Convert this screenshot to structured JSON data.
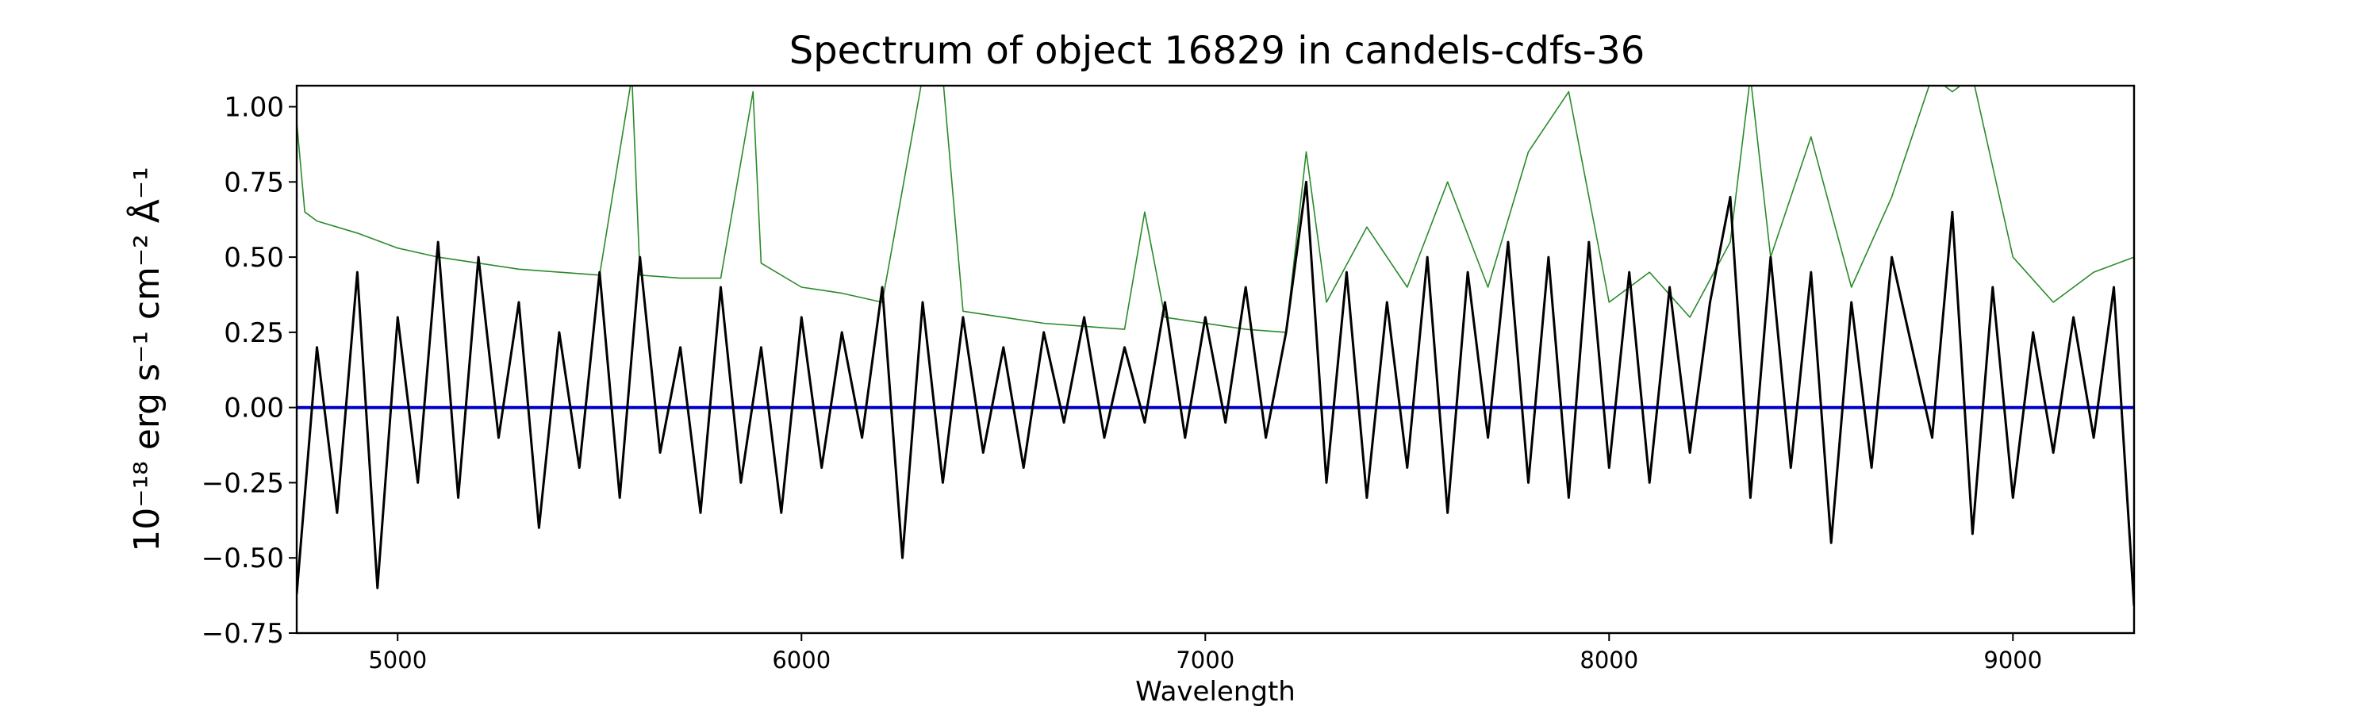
{
  "chart_data": {
    "type": "line",
    "title": "Spectrum of object 16829 in candels-cdfs-36",
    "xlabel": "Wavelength",
    "ylabel": "10⁻¹⁸ erg s⁻¹ cm⁻² Å⁻¹",
    "xlim": [
      4750,
      9300
    ],
    "ylim": [
      -0.75,
      1.07
    ],
    "x_ticks": [
      5000,
      6000,
      7000,
      8000,
      9000
    ],
    "y_ticks": [
      1.0,
      0.75,
      0.5,
      0.25,
      0.0,
      -0.25,
      -0.5,
      -0.75
    ],
    "y_tick_labels": [
      "1.00",
      "0.75",
      "0.50",
      "0.25",
      "0.00",
      "−0.25",
      "−0.50",
      "−0.75"
    ],
    "grid": false,
    "series": [
      {
        "color": "#000000",
        "x": [
          4750,
          4800,
          4850,
          4900,
          4950,
          5000,
          5050,
          5100,
          5150,
          5200,
          5250,
          5300,
          5350,
          5400,
          5450,
          5500,
          5550,
          5600,
          5650,
          5700,
          5750,
          5800,
          5850,
          5900,
          5950,
          6000,
          6050,
          6100,
          6150,
          6200,
          6250,
          6300,
          6350,
          6400,
          6450,
          6500,
          6550,
          6600,
          6650,
          6700,
          6750,
          6800,
          6850,
          6900,
          6950,
          7000,
          7050,
          7100,
          7150,
          7200,
          7250,
          7300,
          7350,
          7400,
          7450,
          7500,
          7550,
          7600,
          7650,
          7700,
          7750,
          7800,
          7850,
          7900,
          7950,
          8000,
          8050,
          8100,
          8150,
          8200,
          8250,
          8300,
          8350,
          8400,
          8450,
          8500,
          8550,
          8600,
          8650,
          8700,
          8750,
          8800,
          8850,
          8900,
          8950,
          9000,
          9050,
          9100,
          9150,
          9200,
          9250,
          9300
        ],
        "values": [
          -0.62,
          0.2,
          -0.35,
          0.45,
          -0.6,
          0.3,
          -0.25,
          0.55,
          -0.3,
          0.5,
          -0.1,
          0.35,
          -0.4,
          0.25,
          -0.2,
          0.45,
          -0.3,
          0.5,
          -0.15,
          0.2,
          -0.35,
          0.4,
          -0.25,
          0.2,
          -0.35,
          0.3,
          -0.2,
          0.25,
          -0.1,
          0.4,
          -0.5,
          0.35,
          -0.25,
          0.3,
          -0.15,
          0.2,
          -0.2,
          0.25,
          -0.05,
          0.3,
          -0.1,
          0.2,
          -0.05,
          0.35,
          -0.1,
          0.3,
          -0.05,
          0.4,
          -0.1,
          0.25,
          0.75,
          -0.25,
          0.45,
          -0.3,
          0.35,
          -0.2,
          0.5,
          -0.35,
          0.45,
          -0.1,
          0.55,
          -0.25,
          0.5,
          -0.3,
          0.55,
          -0.2,
          0.45,
          -0.25,
          0.4,
          -0.15,
          0.35,
          0.7,
          -0.3,
          0.5,
          -0.2,
          0.45,
          -0.45,
          0.35,
          -0.2,
          0.5,
          0.2,
          -0.1,
          0.65,
          -0.42,
          0.4,
          -0.3,
          0.25,
          -0.15,
          0.3,
          -0.1,
          0.4,
          -0.66
        ]
      },
      {
        "color": "#2a8a2a",
        "x": [
          4750,
          4770,
          4800,
          4900,
          5000,
          5100,
          5200,
          5300,
          5400,
          5500,
          5580,
          5600,
          5700,
          5800,
          5880,
          5900,
          6000,
          6100,
          6200,
          6300,
          6350,
          6400,
          6500,
          6600,
          6700,
          6800,
          6850,
          6900,
          7000,
          7100,
          7200,
          7250,
          7300,
          7400,
          7500,
          7600,
          7700,
          7800,
          7900,
          8000,
          8100,
          8200,
          8300,
          8350,
          8400,
          8500,
          8600,
          8700,
          8800,
          8850,
          8900,
          9000,
          9100,
          9200,
          9300
        ],
        "values": [
          0.95,
          0.65,
          0.62,
          0.58,
          0.53,
          0.5,
          0.48,
          0.46,
          0.45,
          0.44,
          1.1,
          0.44,
          0.43,
          0.43,
          1.05,
          0.48,
          0.4,
          0.38,
          0.35,
          1.1,
          1.1,
          0.32,
          0.3,
          0.28,
          0.27,
          0.26,
          0.65,
          0.3,
          0.28,
          0.26,
          0.25,
          0.85,
          0.35,
          0.6,
          0.4,
          0.75,
          0.4,
          0.85,
          1.05,
          0.35,
          0.45,
          0.3,
          0.55,
          1.1,
          0.5,
          0.9,
          0.4,
          0.7,
          1.1,
          1.05,
          1.1,
          0.5,
          0.35,
          0.45,
          0.5
        ]
      },
      {
        "color": "#0000cc",
        "x": [
          4750,
          9300
        ],
        "values": [
          0.0,
          0.0
        ]
      }
    ]
  }
}
